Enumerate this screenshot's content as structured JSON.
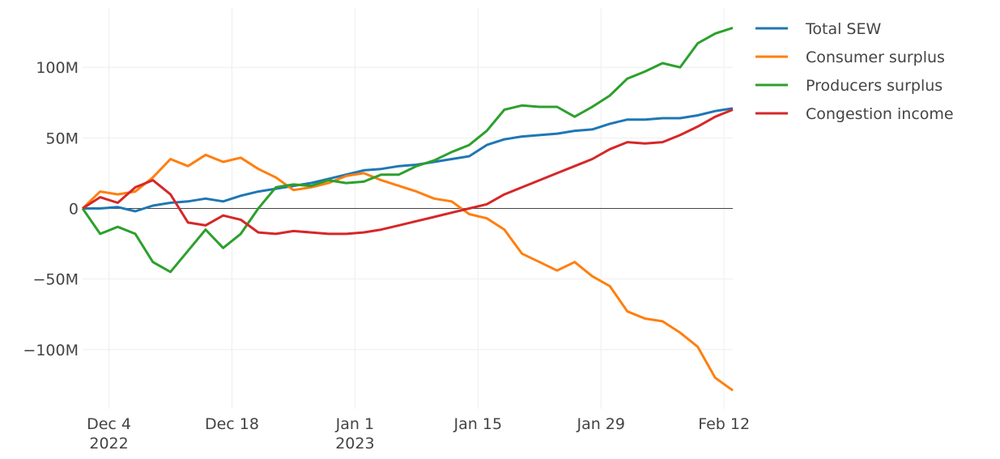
{
  "chart_data": {
    "type": "line",
    "x": [
      "2022-12-01",
      "2022-12-03",
      "2022-12-05",
      "2022-12-07",
      "2022-12-09",
      "2022-12-11",
      "2022-12-13",
      "2022-12-15",
      "2022-12-17",
      "2022-12-19",
      "2022-12-21",
      "2022-12-23",
      "2022-12-25",
      "2022-12-27",
      "2022-12-29",
      "2022-12-31",
      "2023-01-02",
      "2023-01-04",
      "2023-01-06",
      "2023-01-08",
      "2023-01-10",
      "2023-01-12",
      "2023-01-14",
      "2023-01-16",
      "2023-01-18",
      "2023-01-20",
      "2023-01-22",
      "2023-01-24",
      "2023-01-26",
      "2023-01-28",
      "2023-01-30",
      "2023-02-01",
      "2023-02-03",
      "2023-02-05",
      "2023-02-07",
      "2023-02-09",
      "2023-02-11",
      "2023-02-13"
    ],
    "series": [
      {
        "name": "Total SEW",
        "color": "#1f77b4",
        "values": [
          0,
          0,
          1,
          -2,
          2,
          4,
          5,
          7,
          5,
          9,
          12,
          14,
          16,
          18,
          21,
          24,
          27,
          28,
          30,
          31,
          33,
          35,
          37,
          45,
          49,
          51,
          52,
          53,
          55,
          56,
          60,
          63,
          63,
          64,
          64,
          66,
          69,
          71
        ]
      },
      {
        "name": "Consumer surplus",
        "color": "#ff7f0e",
        "values": [
          0,
          12,
          10,
          12,
          22,
          35,
          30,
          38,
          33,
          36,
          28,
          22,
          13,
          15,
          18,
          23,
          25,
          20,
          16,
          12,
          7,
          5,
          -4,
          -7,
          -15,
          -32,
          -38,
          -44,
          -38,
          -48,
          -55,
          -73,
          -78,
          -80,
          -88,
          -98,
          -120,
          -129
        ]
      },
      {
        "name": "Producers surplus",
        "color": "#2ca02c",
        "values": [
          0,
          -18,
          -13,
          -18,
          -38,
          -45,
          -30,
          -15,
          -28,
          -18,
          0,
          15,
          17,
          16,
          20,
          18,
          19,
          24,
          24,
          30,
          34,
          40,
          45,
          55,
          70,
          73,
          72,
          72,
          65,
          72,
          80,
          92,
          97,
          103,
          100,
          117,
          124,
          128
        ]
      },
      {
        "name": "Congestion income",
        "color": "#d62728",
        "values": [
          0,
          8,
          4,
          15,
          20,
          10,
          -10,
          -12,
          -5,
          -8,
          -17,
          -18,
          -16,
          -17,
          -18,
          -18,
          -17,
          -15,
          -12,
          -9,
          -6,
          -3,
          0,
          3,
          10,
          15,
          20,
          25,
          30,
          35,
          42,
          47,
          46,
          47,
          52,
          58,
          65,
          70
        ]
      }
    ],
    "xlim": [
      "2022-12-01",
      "2023-02-13"
    ],
    "xticks": [
      {
        "value": "2022-12-04",
        "label": "Dec 4\n2022"
      },
      {
        "value": "2022-12-18",
        "label": "Dec 18"
      },
      {
        "value": "2023-01-01",
        "label": "Jan 1\n2023"
      },
      {
        "value": "2023-01-15",
        "label": "Jan 15"
      },
      {
        "value": "2023-01-29",
        "label": "Jan 29"
      },
      {
        "value": "2023-02-12",
        "label": "Feb 12"
      }
    ],
    "ylim": [
      -142,
      142
    ],
    "yticks": [
      {
        "value": -100,
        "label": "−100M"
      },
      {
        "value": -50,
        "label": "−50M"
      },
      0,
      {
        "value": 50,
        "label": "50M"
      },
      {
        "value": 100,
        "label": "100M"
      }
    ],
    "grid": true
  }
}
